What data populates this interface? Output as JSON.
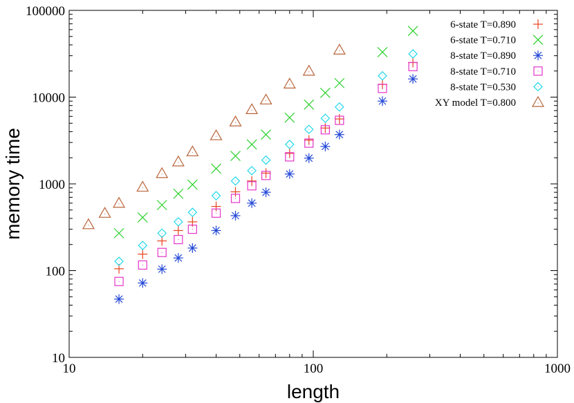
{
  "chart_data": {
    "type": "scatter",
    "xlabel": "length",
    "ylabel": "memory time",
    "x_scale": "log",
    "y_scale": "log",
    "xlim": [
      10,
      1000
    ],
    "ylim": [
      10,
      100000
    ],
    "x_ticks": [
      {
        "value": 10,
        "label": "10"
      },
      {
        "value": 100,
        "label": "100"
      },
      {
        "value": 1000,
        "label": "1000"
      }
    ],
    "y_ticks": [
      {
        "value": 10,
        "label": "10"
      },
      {
        "value": 100,
        "label": "100"
      },
      {
        "value": 1000,
        "label": "1000"
      },
      {
        "value": 10000,
        "label": "10000"
      },
      {
        "value": 100000,
        "label": "100000"
      }
    ],
    "grid": false,
    "legend_position": "top-right",
    "series": [
      {
        "name": "6-state T=0.890",
        "marker": "plus",
        "color": "#e8411e",
        "points": [
          [
            16,
            105
          ],
          [
            20,
            155
          ],
          [
            24,
            220
          ],
          [
            28,
            290
          ],
          [
            32,
            365
          ],
          [
            40,
            550
          ],
          [
            48,
            810
          ],
          [
            56,
            1080
          ],
          [
            64,
            1330
          ],
          [
            80,
            2250
          ],
          [
            96,
            3200
          ],
          [
            112,
            4400
          ],
          [
            128,
            5600
          ],
          [
            192,
            14000
          ],
          [
            256,
            25000
          ]
        ]
      },
      {
        "name": "6-state T=0.710",
        "marker": "cross",
        "color": "#2ad12a",
        "points": [
          [
            16,
            270
          ],
          [
            20,
            410
          ],
          [
            24,
            570
          ],
          [
            28,
            770
          ],
          [
            32,
            980
          ],
          [
            40,
            1500
          ],
          [
            48,
            2100
          ],
          [
            56,
            2850
          ],
          [
            64,
            3700
          ],
          [
            80,
            5800
          ],
          [
            96,
            8200
          ],
          [
            112,
            11200
          ],
          [
            128,
            14500
          ],
          [
            192,
            33000
          ],
          [
            256,
            58000
          ]
        ]
      },
      {
        "name": "8-state T=0.890",
        "marker": "asterisk",
        "color": "#2146d6",
        "points": [
          [
            16,
            47
          ],
          [
            20,
            72
          ],
          [
            24,
            104
          ],
          [
            28,
            140
          ],
          [
            32,
            182
          ],
          [
            40,
            290
          ],
          [
            48,
            430
          ],
          [
            56,
            600
          ],
          [
            64,
            800
          ],
          [
            80,
            1300
          ],
          [
            96,
            1980
          ],
          [
            112,
            2700
          ],
          [
            128,
            3700
          ],
          [
            192,
            9000
          ],
          [
            256,
            16200
          ]
        ]
      },
      {
        "name": "8-state T=0.710",
        "marker": "square",
        "color": "#e533c8",
        "points": [
          [
            16,
            75
          ],
          [
            20,
            116
          ],
          [
            24,
            162
          ],
          [
            28,
            228
          ],
          [
            32,
            300
          ],
          [
            40,
            460
          ],
          [
            48,
            680
          ],
          [
            56,
            950
          ],
          [
            64,
            1250
          ],
          [
            80,
            2050
          ],
          [
            96,
            2950
          ],
          [
            112,
            4200
          ],
          [
            128,
            5400
          ],
          [
            192,
            12600
          ],
          [
            256,
            22500
          ]
        ]
      },
      {
        "name": "8-state T=0.530",
        "marker": "diamond",
        "color": "#1fd7e8",
        "points": [
          [
            16,
            128
          ],
          [
            20,
            195
          ],
          [
            24,
            270
          ],
          [
            28,
            365
          ],
          [
            32,
            470
          ],
          [
            40,
            730
          ],
          [
            48,
            1080
          ],
          [
            56,
            1420
          ],
          [
            64,
            1880
          ],
          [
            80,
            2850
          ],
          [
            96,
            4250
          ],
          [
            112,
            5700
          ],
          [
            128,
            7700
          ],
          [
            192,
            17600
          ],
          [
            256,
            31500
          ]
        ]
      },
      {
        "name": "XY model T=0.800",
        "marker": "triangle",
        "color": "#b8643a",
        "points": [
          [
            12,
            340
          ],
          [
            14,
            460
          ],
          [
            16,
            600
          ],
          [
            20,
            920
          ],
          [
            24,
            1320
          ],
          [
            28,
            1800
          ],
          [
            32,
            2350
          ],
          [
            40,
            3600
          ],
          [
            48,
            5200
          ],
          [
            56,
            7200
          ],
          [
            64,
            9300
          ],
          [
            80,
            14200
          ],
          [
            96,
            20000
          ],
          [
            128,
            35000
          ]
        ]
      }
    ]
  }
}
